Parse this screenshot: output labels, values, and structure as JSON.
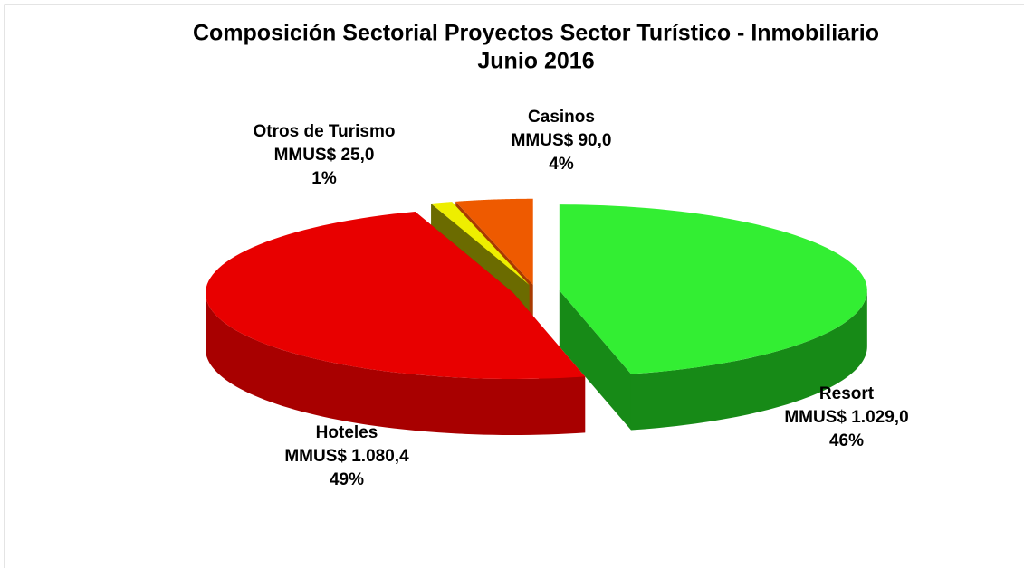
{
  "chart_data": {
    "type": "pie",
    "title": "Composición Sectorial Proyectos Sector  Turístico - Inmobiliario",
    "subtitle": "Junio 2016",
    "categories": [
      "Resort",
      "Hoteles",
      "Otros de Turismo",
      "Casinos"
    ],
    "values": [
      1029.0,
      1080.4,
      25.0,
      90.0
    ],
    "value_labels": [
      "MMUS$ 1.029,0",
      "MMUS$ 1.080,4",
      "MMUS$ 25,0",
      "MMUS$ 90,0"
    ],
    "percent_labels": [
      "46%",
      "49%",
      "1%",
      "4%"
    ],
    "colors": [
      "#33ee33",
      "#e80000",
      "#eeee00",
      "#ee5a00"
    ],
    "side_colors": [
      "#178a17",
      "#a80000",
      "#6b6b00",
      "#a83a00"
    ]
  }
}
